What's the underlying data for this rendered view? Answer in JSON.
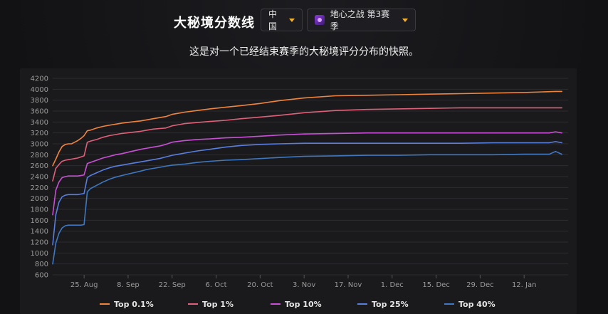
{
  "header": {
    "title": "大秘境分数线",
    "region": "中国",
    "season": "地心之战 第3赛季"
  },
  "subtitle": "这是对一个已经结束赛季的大秘境评分分布的快照。",
  "colors": {
    "background": "#141416",
    "panel": "#1a1a1c",
    "grid": "#2c2c30",
    "axis_text": "#9a9a9a",
    "accent": "#f2b233"
  },
  "chart_data": {
    "type": "line",
    "title": "",
    "xlabel": "",
    "ylabel": "",
    "ylim": [
      600,
      4200
    ],
    "xlim": [
      0,
      164
    ],
    "yticks": [
      600,
      800,
      1000,
      1200,
      1400,
      1600,
      1800,
      2000,
      2200,
      2400,
      2600,
      2800,
      3000,
      3200,
      3400,
      3600,
      3800,
      4000,
      4200
    ],
    "xticks": [
      {
        "label": "25. Aug",
        "x": 10
      },
      {
        "label": "8. Sep",
        "x": 24
      },
      {
        "label": "22. Sep",
        "x": 38
      },
      {
        "label": "6. Oct",
        "x": 52
      },
      {
        "label": "20. Oct",
        "x": 66
      },
      {
        "label": "3. Nov",
        "x": 80
      },
      {
        "label": "17. Nov",
        "x": 94
      },
      {
        "label": "1. Dec",
        "x": 108
      },
      {
        "label": "15. Dec",
        "x": 122
      },
      {
        "label": "29. Dec",
        "x": 136
      },
      {
        "label": "12. Jan",
        "x": 150
      }
    ],
    "grid": true,
    "legend_position": "bottom",
    "series": [
      {
        "name": "Top 0.1%",
        "color": "#f0843c",
        "x": [
          0,
          1,
          2,
          3,
          4,
          5,
          6,
          7,
          8,
          9,
          10,
          11,
          12,
          14,
          16,
          18,
          20,
          22,
          25,
          28,
          30,
          32,
          34,
          36,
          38,
          42,
          46,
          50,
          55,
          60,
          66,
          72,
          80,
          90,
          100,
          110,
          120,
          130,
          140,
          150,
          160,
          162
        ],
        "values": [
          2600,
          2720,
          2850,
          2950,
          2990,
          3000,
          3000,
          3030,
          3060,
          3100,
          3150,
          3240,
          3250,
          3290,
          3320,
          3340,
          3360,
          3380,
          3400,
          3420,
          3440,
          3460,
          3480,
          3500,
          3540,
          3580,
          3610,
          3640,
          3670,
          3700,
          3740,
          3790,
          3840,
          3880,
          3890,
          3900,
          3910,
          3920,
          3930,
          3940,
          3960,
          3960
        ]
      },
      {
        "name": "Top 1%",
        "color": "#e0607a",
        "x": [
          0,
          1,
          2,
          3,
          4,
          5,
          6,
          7,
          8,
          9,
          10,
          11,
          12,
          14,
          16,
          18,
          20,
          22,
          25,
          28,
          30,
          32,
          34,
          36,
          38,
          42,
          46,
          50,
          55,
          60,
          66,
          72,
          80,
          90,
          100,
          110,
          120,
          130,
          140,
          150,
          160,
          162
        ],
        "values": [
          2320,
          2550,
          2620,
          2680,
          2700,
          2710,
          2720,
          2730,
          2740,
          2760,
          2780,
          3030,
          3050,
          3080,
          3120,
          3150,
          3170,
          3190,
          3210,
          3230,
          3250,
          3270,
          3280,
          3290,
          3330,
          3370,
          3390,
          3410,
          3430,
          3460,
          3490,
          3520,
          3570,
          3610,
          3630,
          3640,
          3650,
          3660,
          3660,
          3660,
          3660,
          3660
        ]
      },
      {
        "name": "Top 10%",
        "color": "#c94fd6",
        "x": [
          0,
          1,
          2,
          3,
          4,
          5,
          6,
          7,
          8,
          9,
          10,
          11,
          12,
          14,
          16,
          18,
          20,
          22,
          25,
          28,
          30,
          32,
          34,
          36,
          38,
          42,
          46,
          50,
          55,
          60,
          66,
          72,
          80,
          90,
          100,
          110,
          120,
          130,
          140,
          150,
          158,
          160,
          162
        ],
        "values": [
          1700,
          2150,
          2300,
          2380,
          2400,
          2410,
          2410,
          2410,
          2410,
          2420,
          2430,
          2640,
          2660,
          2700,
          2740,
          2770,
          2800,
          2820,
          2860,
          2900,
          2920,
          2940,
          2960,
          2990,
          3030,
          3060,
          3080,
          3090,
          3110,
          3120,
          3140,
          3160,
          3180,
          3190,
          3200,
          3200,
          3200,
          3200,
          3200,
          3200,
          3200,
          3220,
          3200
        ]
      },
      {
        "name": "Top 25%",
        "color": "#5a7ee0",
        "x": [
          0,
          1,
          2,
          3,
          4,
          5,
          6,
          7,
          8,
          9,
          10,
          11,
          12,
          14,
          16,
          18,
          20,
          22,
          25,
          28,
          30,
          32,
          34,
          36,
          38,
          42,
          46,
          50,
          55,
          60,
          66,
          72,
          80,
          90,
          100,
          110,
          120,
          130,
          140,
          150,
          158,
          160,
          162
        ],
        "values": [
          1150,
          1700,
          1930,
          2030,
          2060,
          2070,
          2070,
          2070,
          2070,
          2080,
          2090,
          2380,
          2420,
          2470,
          2520,
          2560,
          2590,
          2610,
          2640,
          2670,
          2690,
          2710,
          2730,
          2760,
          2790,
          2830,
          2870,
          2900,
          2940,
          2970,
          2990,
          3000,
          3010,
          3010,
          3010,
          3010,
          3010,
          3010,
          3020,
          3020,
          3020,
          3040,
          3020
        ]
      },
      {
        "name": "Top 40%",
        "color": "#3f78c0",
        "x": [
          0,
          1,
          2,
          3,
          4,
          5,
          6,
          7,
          8,
          9,
          10,
          11,
          12,
          14,
          16,
          18,
          20,
          22,
          25,
          28,
          30,
          32,
          34,
          36,
          38,
          42,
          46,
          50,
          55,
          60,
          66,
          72,
          80,
          90,
          100,
          110,
          120,
          130,
          140,
          150,
          158,
          160,
          162
        ],
        "values": [
          800,
          1180,
          1360,
          1460,
          1500,
          1510,
          1510,
          1510,
          1510,
          1510,
          1520,
          2120,
          2180,
          2240,
          2300,
          2350,
          2390,
          2420,
          2460,
          2500,
          2530,
          2550,
          2570,
          2590,
          2610,
          2630,
          2660,
          2680,
          2700,
          2710,
          2730,
          2750,
          2770,
          2780,
          2790,
          2790,
          2800,
          2800,
          2800,
          2810,
          2810,
          2860,
          2810
        ]
      }
    ]
  }
}
